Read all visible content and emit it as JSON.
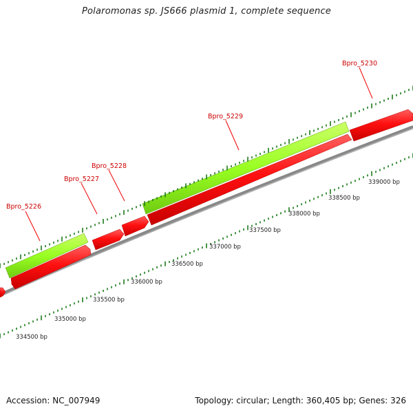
{
  "title": "Polaromonas sp. JS666 plasmid 1, complete sequence",
  "footer": {
    "accession": "Accession: NC_007949",
    "summary": "Topology: circular; Length: 360,405 bp; Genes: 326"
  },
  "colors": {
    "forward_strand": "#99ff22",
    "reverse_strand": "#ff0f0f",
    "backbone": "#888888",
    "ticks": "#1a7a1a",
    "gene_label": "#cc0000"
  },
  "gene_labels": [
    "Bpro_5226",
    "Bpro_5227",
    "Bpro_5228",
    "Bpro_5229",
    "Bpro_5230"
  ],
  "position_labels": [
    "334500 bp",
    "335000 bp",
    "335500 bp",
    "336000 bp",
    "336500 bp",
    "337000 bp",
    "337500 bp",
    "338000 bp",
    "338500 bp",
    "339000 bp"
  ]
}
